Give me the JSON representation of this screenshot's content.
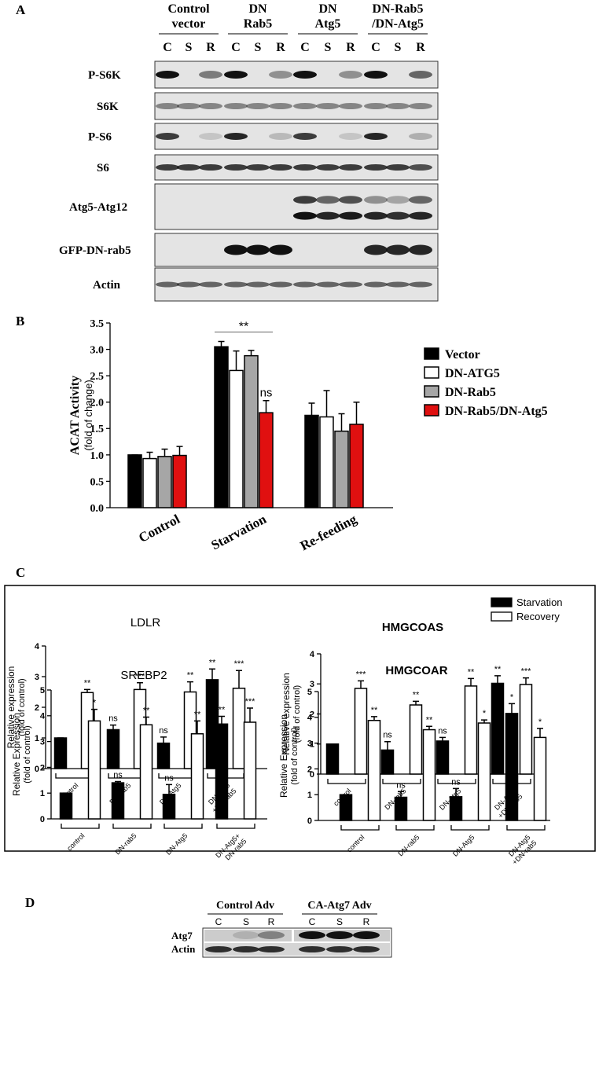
{
  "panel_a": {
    "label": "A",
    "groups": [
      [
        "Control",
        "vector"
      ],
      [
        "DN",
        "Rab5"
      ],
      [
        "DN",
        "Atg5"
      ],
      [
        "DN-Rab5",
        "/DN-Atg5"
      ]
    ],
    "lanes": [
      "C",
      "S",
      "R"
    ],
    "rows": [
      "P-S6K",
      "S6K",
      "P-S6",
      "S6",
      "Atg5-Atg12",
      "GFP-DN-rab5",
      "Actin"
    ]
  },
  "panel_b": {
    "label": "B"
  },
  "panel_c": {
    "label": "C"
  },
  "panel_d": {
    "label": "D",
    "groups": [
      "Control Adv",
      "CA-Atg7 Adv"
    ],
    "lanes": [
      "C",
      "S",
      "R"
    ],
    "rows": [
      "Atg7",
      "Actin"
    ]
  },
  "chart_data": [
    {
      "type": "bar",
      "ylabel": "ACAT Activity",
      "ylabel_sub": "(fold of change)",
      "categories": [
        "Control",
        "Starvation",
        "Re-feeding"
      ],
      "series": [
        {
          "name": "Vector",
          "color": "#000000",
          "values": [
            1.0,
            3.05,
            1.75
          ],
          "errors": [
            0,
            0.1,
            0.23
          ]
        },
        {
          "name": "DN-ATG5",
          "color": "#ffffff",
          "values": [
            0.93,
            2.6,
            1.72
          ],
          "errors": [
            0.12,
            0.37,
            0.5
          ]
        },
        {
          "name": "DN-Rab5",
          "color": "#a6a6a6",
          "values": [
            0.97,
            2.88,
            1.45
          ],
          "errors": [
            0.14,
            0.1,
            0.33
          ]
        },
        {
          "name": "DN-Rab5/DN-Atg5",
          "color": "#e01010",
          "values": [
            0.99,
            1.8,
            1.58
          ],
          "errors": [
            0.17,
            0.23,
            0.42
          ],
          "labels": [
            null,
            "ns",
            null
          ]
        }
      ],
      "ylim": [
        0,
        3.5
      ],
      "yticks": [
        {
          "value": 0,
          "label": "0.0"
        },
        0.5,
        {
          "value": 1,
          "label": "1.0"
        },
        1.5,
        {
          "value": 2,
          "label": "2.0"
        },
        2.5,
        {
          "value": 3,
          "label": "3.0"
        },
        3.5
      ],
      "annotations": [
        {
          "text": "**",
          "category": "Starvation"
        }
      ],
      "legend": "right"
    },
    {
      "type": "bar",
      "title": "LDLR",
      "ylabel": "Relative expression",
      "ylabel_sub": "(fold of control)",
      "categories": [
        "control",
        "DN-rab5",
        "DN-Atg5",
        [
          "DN-Atg5",
          "+DN-rab5"
        ]
      ],
      "series": [
        {
          "name": "Starvation",
          "color": "#000000",
          "values": [
            1,
            1.27,
            0.83,
            2.9
          ],
          "errors": [
            0,
            0.15,
            0.2,
            0.35
          ],
          "labels": [
            null,
            "ns",
            "ns",
            "**"
          ]
        },
        {
          "name": "Recovery",
          "color": "#ffffff",
          "values": [
            2.48,
            2.58,
            2.5,
            2.62
          ],
          "errors": [
            0.1,
            0.22,
            0.33,
            0.58
          ],
          "labels": [
            "**",
            "***",
            "**",
            "***"
          ]
        }
      ],
      "ylim": [
        0,
        4
      ],
      "yticks": [
        0,
        1,
        2,
        3,
        4
      ],
      "legend": "upper right"
    },
    {
      "type": "bar",
      "title": "HMGCOAS",
      "ylabel": "Relative expression",
      "ylabel_sub": "(fold of control)",
      "categories": [
        "control",
        "DN-rab5",
        "DN-Atg5",
        [
          "DN-Atg5",
          "+DN-rab5"
        ]
      ],
      "series": [
        {
          "color": "#000000",
          "values": [
            1,
            0.8,
            1.1,
            3.02
          ],
          "errors": [
            0,
            0.28,
            0.12,
            0.25
          ],
          "labels": [
            null,
            "ns",
            "ns",
            "**"
          ]
        },
        {
          "color": "#ffffff",
          "values": [
            2.85,
            2.3,
            2.93,
            2.98
          ],
          "errors": [
            0.25,
            0.12,
            0.25,
            0.22
          ],
          "labels": [
            "***",
            "**",
            "**",
            "***"
          ]
        }
      ],
      "ylim": [
        0,
        4
      ],
      "yticks": [
        0,
        1,
        2,
        3,
        4
      ]
    },
    {
      "type": "bar",
      "title": "SREBP2",
      "ylabel": "Relative Expression",
      "ylabel_sub": "(fold of control)",
      "categories": [
        "control",
        "DN-rab5",
        "DN-Atg5",
        [
          "DN-Atg5+",
          "DN-rab5"
        ]
      ],
      "series": [
        {
          "color": "#000000",
          "values": [
            1,
            1.4,
            0.95,
            3.68
          ],
          "errors": [
            0,
            0.05,
            0.38,
            0.3
          ],
          "labels": [
            null,
            "ns",
            "ns",
            "**"
          ]
        },
        {
          "color": "#ffffff",
          "values": [
            3.8,
            3.65,
            3.3,
            3.75
          ],
          "errors": [
            0.45,
            0.3,
            0.5,
            0.55
          ],
          "labels": [
            "*",
            "**",
            "**",
            "***"
          ]
        }
      ],
      "ylim": [
        0,
        5
      ],
      "yticks": [
        0,
        1,
        2,
        3,
        4,
        5
      ]
    },
    {
      "type": "bar",
      "title": "HMGCOAR",
      "ylabel": "Relative Expression",
      "ylabel_sub": "(fold of control)",
      "categories": [
        "control",
        "DN-rab5",
        "DN-Atg5",
        [
          "DN-Atg5",
          "+DN-rab5"
        ]
      ],
      "series": [
        {
          "color": "#000000",
          "values": [
            1,
            0.9,
            0.92,
            4.15
          ],
          "errors": [
            0,
            0.22,
            0.32,
            0.38
          ],
          "labels": [
            null,
            "ns",
            "ns",
            "*"
          ]
        },
        {
          "color": "#ffffff",
          "values": [
            3.88,
            3.52,
            3.78,
            3.22
          ],
          "errors": [
            0.15,
            0.13,
            0.12,
            0.35
          ],
          "labels": [
            "**",
            "**",
            "*",
            "*"
          ]
        }
      ],
      "ylim": [
        0,
        5
      ],
      "yticks": [
        0,
        1,
        2,
        3,
        4,
        5
      ]
    }
  ]
}
